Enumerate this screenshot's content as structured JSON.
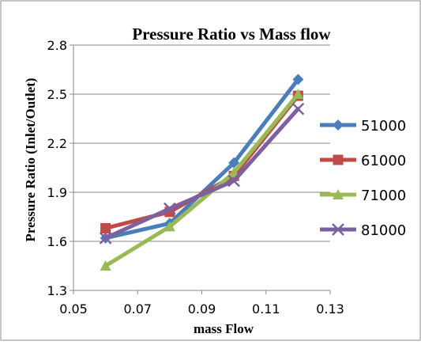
{
  "chart_data": {
    "type": "line",
    "title": "Pressure Ratio vs Mass flow",
    "xlabel": "mass Flow",
    "ylabel": "Pressure Ratio (Inlet/Outlet)",
    "xlim": [
      0.05,
      0.13
    ],
    "ylim": [
      1.3,
      2.8
    ],
    "x_ticks": [
      "0.05",
      "0.07",
      "0.09",
      "0.11",
      "0.13"
    ],
    "y_ticks": [
      "1.3",
      "1.6",
      "1.9",
      "2.2",
      "2.5",
      "2.8"
    ],
    "grid": "horizontal",
    "legend_position": "right",
    "series": [
      {
        "name": "51000",
        "color": "#4A7EBB",
        "marker": "diamond",
        "x": [
          0.06,
          0.08,
          0.1,
          0.12
        ],
        "y": [
          1.62,
          1.71,
          2.08,
          2.59
        ]
      },
      {
        "name": "61000",
        "color": "#BE4B48",
        "marker": "square",
        "x": [
          0.06,
          0.08,
          0.1,
          0.12
        ],
        "y": [
          1.68,
          1.78,
          2.0,
          2.49
        ]
      },
      {
        "name": "71000",
        "color": "#98B954",
        "marker": "triangle",
        "x": [
          0.06,
          0.08,
          0.1,
          0.12
        ],
        "y": [
          1.45,
          1.69,
          2.02,
          2.5
        ]
      },
      {
        "name": "81000",
        "color": "#7D60A0",
        "marker": "x",
        "x": [
          0.06,
          0.08,
          0.1,
          0.12
        ],
        "y": [
          1.62,
          1.8,
          1.97,
          2.41
        ]
      }
    ]
  }
}
